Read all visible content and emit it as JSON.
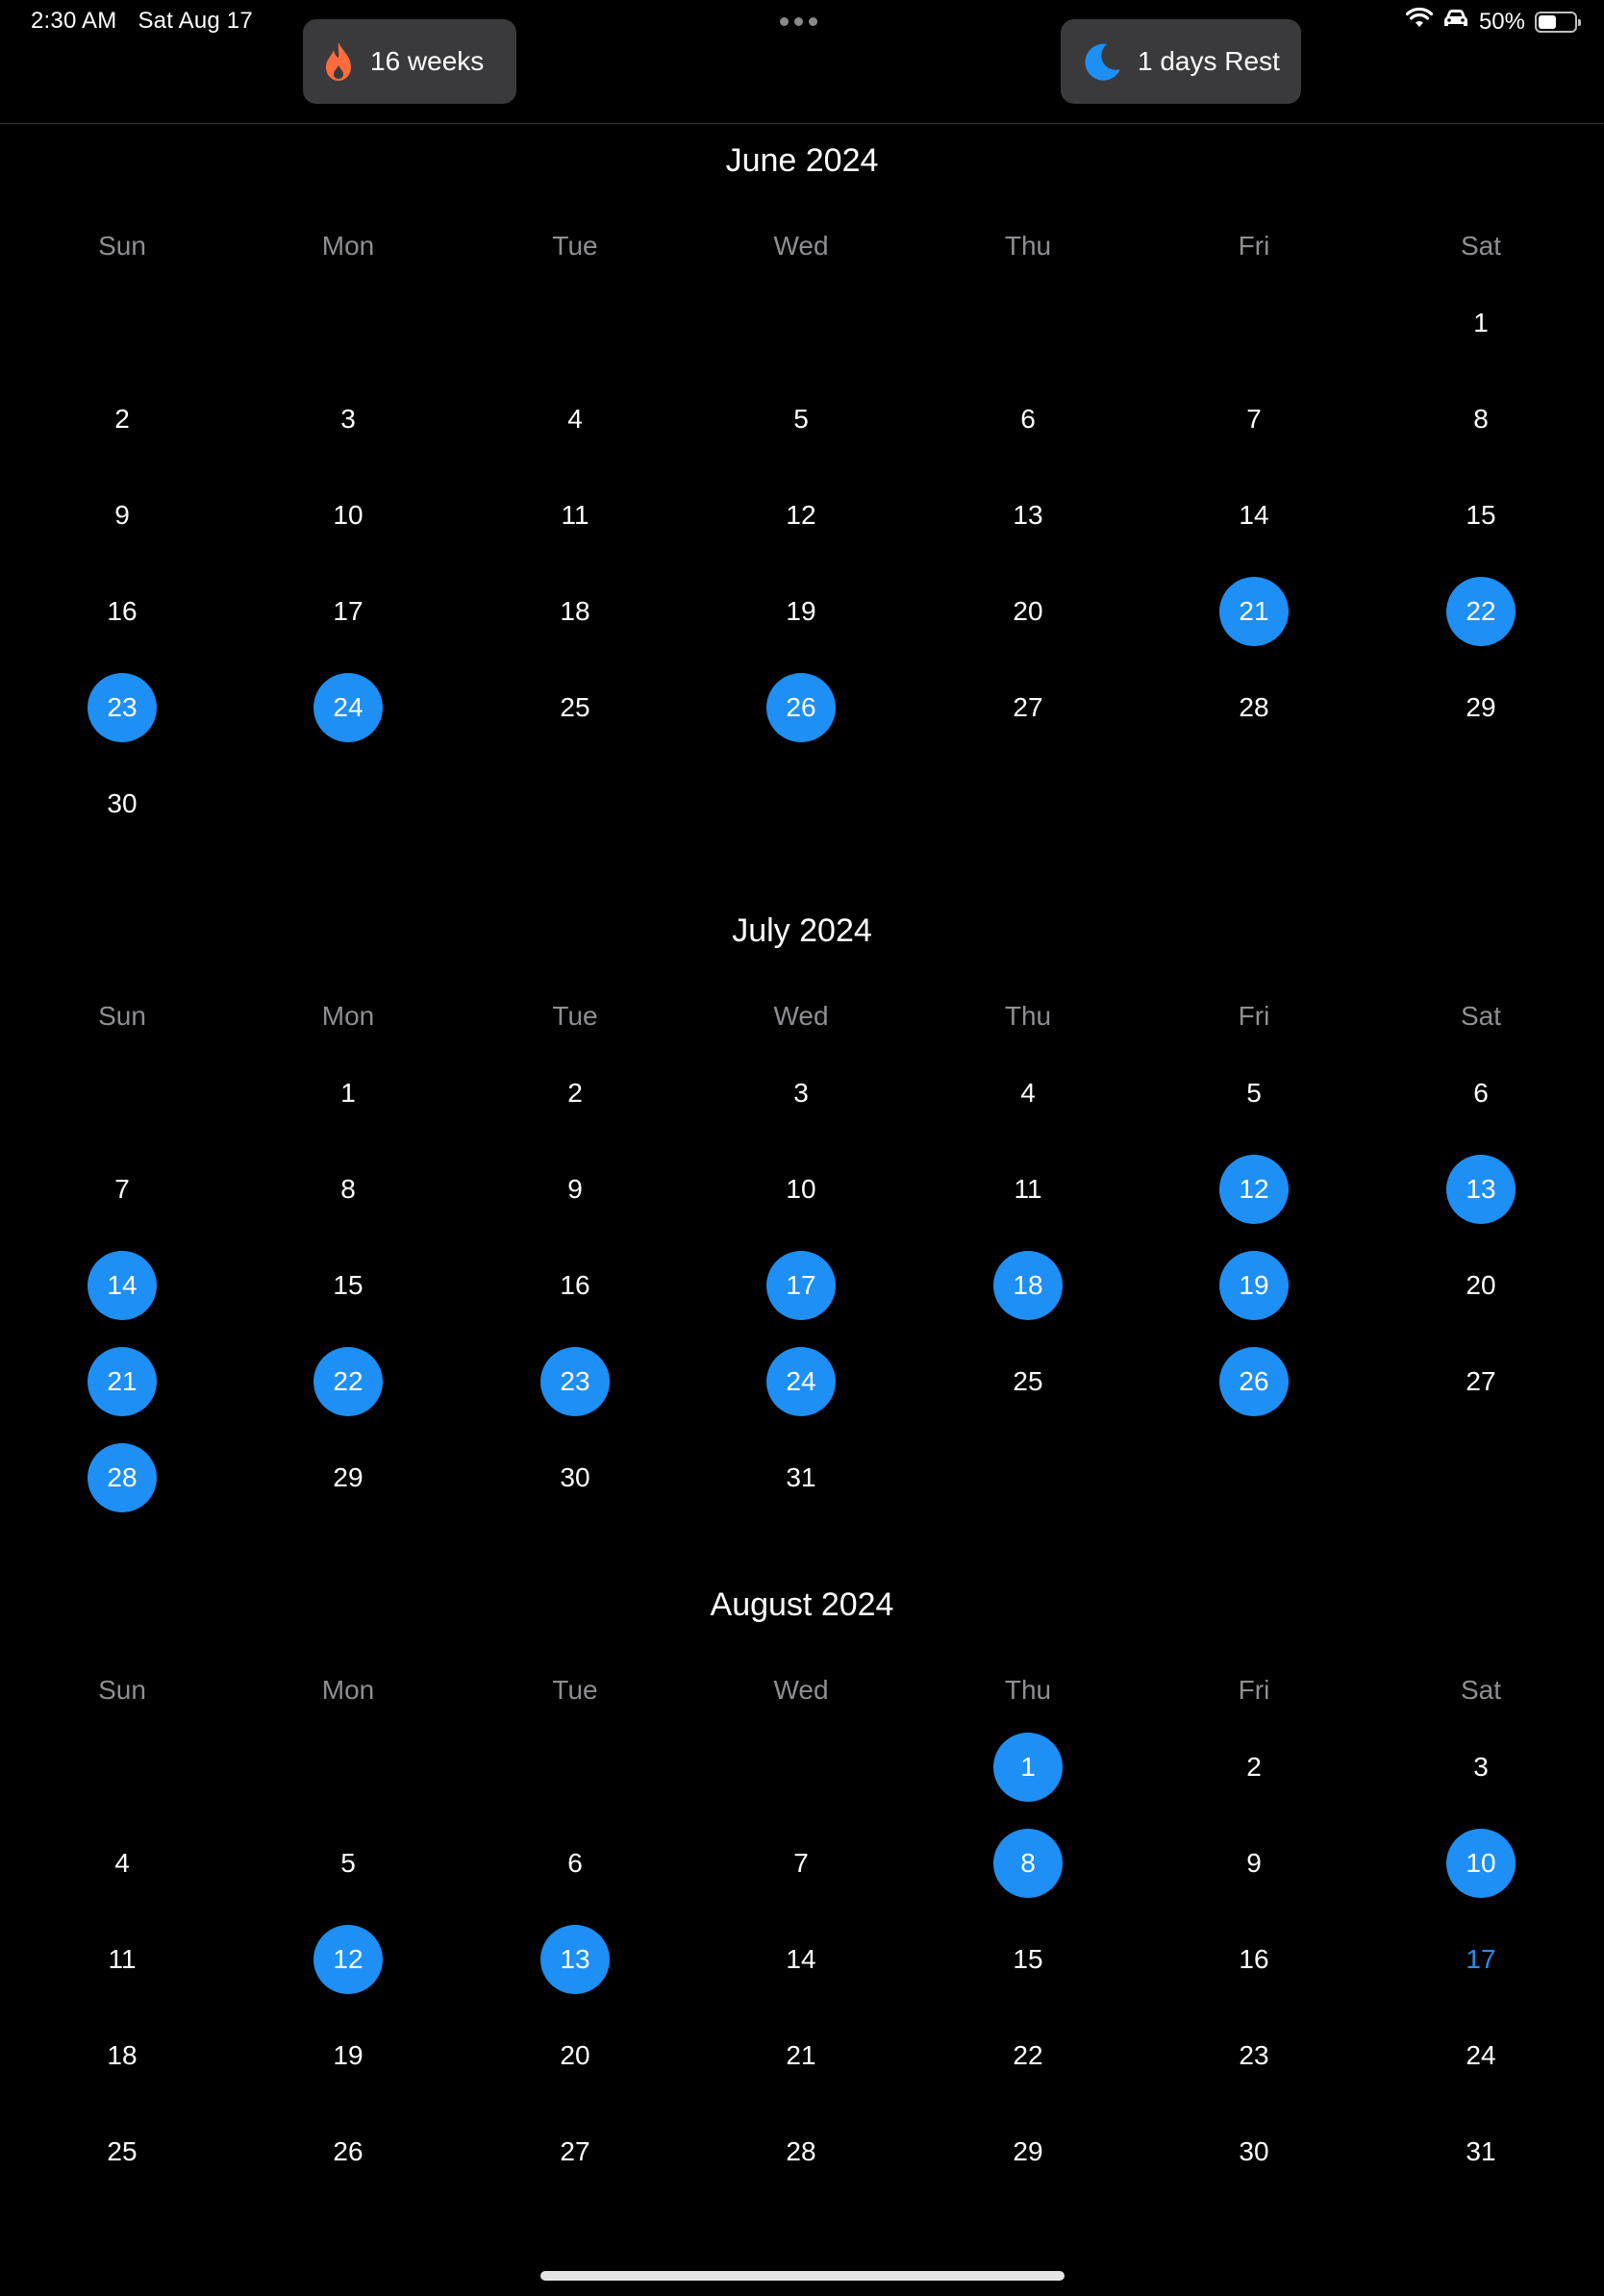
{
  "status_bar": {
    "time": "2:30 AM",
    "date": "Sat Aug 17",
    "battery": "50%",
    "battery_level": 0.5,
    "icons": [
      "wifi-icon",
      "car-icon",
      "battery-icon"
    ]
  },
  "pills": {
    "streak": {
      "label": "16 weeks",
      "icon": "flame-icon",
      "icon_color": "#ff6b3d"
    },
    "rest": {
      "label": "1 days Rest",
      "icon": "moon-icon",
      "icon_color": "#1e8ff5"
    }
  },
  "colors": {
    "background": "#000000",
    "accent": "#1e8ff5",
    "today_text": "#2a8cf0",
    "weekday_text": "#8e8e93",
    "pill_background": "#3a3a3c"
  },
  "weekdays": [
    "Sun",
    "Mon",
    "Tue",
    "Wed",
    "Thu",
    "Fri",
    "Sat"
  ],
  "calendar": {
    "months": [
      {
        "title": "June 2024",
        "first_weekday": 6,
        "days_in_month": 30,
        "highlighted": [
          21,
          22,
          23,
          24,
          26
        ]
      },
      {
        "title": "July 2024",
        "first_weekday": 1,
        "days_in_month": 31,
        "highlighted": [
          12,
          13,
          14,
          17,
          18,
          19,
          21,
          22,
          23,
          24,
          26,
          28
        ]
      },
      {
        "title": "August 2024",
        "first_weekday": 4,
        "days_in_month": 31,
        "highlighted": [
          1,
          8,
          10,
          12,
          13
        ],
        "today": 17
      }
    ]
  }
}
